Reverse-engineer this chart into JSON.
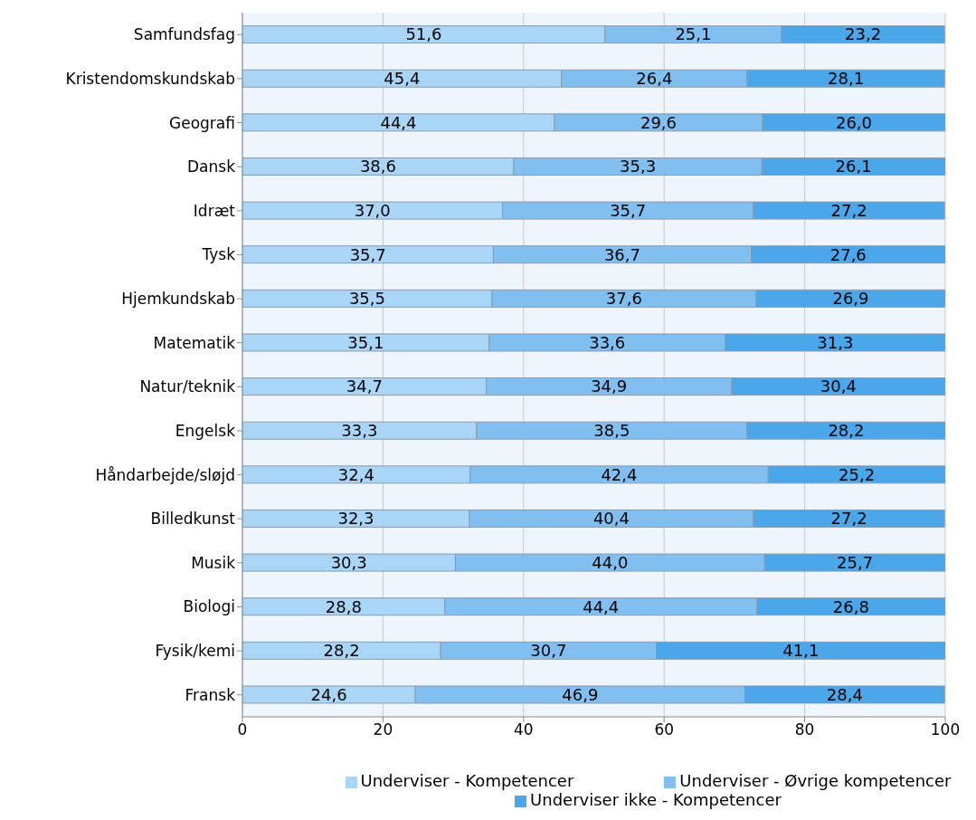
{
  "chart_data": {
    "type": "bar",
    "orientation": "horizontal",
    "stacked": true,
    "categories": [
      "Samfundsfag",
      "Kristendomskundskab",
      "Geografi",
      "Dansk",
      "Idræt",
      "Tysk",
      "Hjemkundskab",
      "Matematik",
      "Natur/teknik",
      "Engelsk",
      "Håndarbejde/sløjd",
      "Billedkunst",
      "Musik",
      "Biologi",
      "Fysik/kemi",
      "Fransk"
    ],
    "series": [
      {
        "name": "Underviser - Kompetencer",
        "color": "#a9d5f6",
        "values": [
          51.6,
          45.4,
          44.4,
          38.6,
          37.0,
          35.7,
          35.5,
          35.1,
          34.7,
          33.3,
          32.4,
          32.3,
          30.3,
          28.8,
          28.2,
          24.6
        ],
        "value_labels": [
          "51,6",
          "45,4",
          "44,4",
          "38,6",
          "37,0",
          "35,7",
          "35,5",
          "35,1",
          "34,7",
          "33,3",
          "32,4",
          "32,3",
          "30,3",
          "28,8",
          "28,2",
          "24,6"
        ]
      },
      {
        "name": "Underviser - Øvrige kompetencer",
        "color": "#80bff0",
        "values": [
          25.1,
          26.4,
          29.6,
          35.3,
          35.7,
          36.7,
          37.6,
          33.6,
          34.9,
          38.5,
          42.4,
          40.4,
          44.0,
          44.4,
          30.7,
          46.9
        ],
        "value_labels": [
          "25,1",
          "26,4",
          "29,6",
          "35,3",
          "35,7",
          "36,7",
          "37,6",
          "33,6",
          "34,9",
          "38,5",
          "42,4",
          "40,4",
          "44,0",
          "44,4",
          "30,7",
          "46,9"
        ]
      },
      {
        "name": "Underviser ikke - Kompetencer",
        "color": "#4ba6ea",
        "values": [
          23.2,
          28.1,
          26.0,
          26.1,
          27.2,
          27.6,
          26.9,
          31.3,
          30.4,
          28.2,
          25.2,
          27.2,
          25.7,
          26.8,
          41.1,
          28.4
        ],
        "value_labels": [
          "23,2",
          "28,1",
          "26,0",
          "26,1",
          "27,2",
          "27,6",
          "26,9",
          "31,3",
          "30,4",
          "28,2",
          "25,2",
          "27,2",
          "25,7",
          "26,8",
          "41,1",
          "28,4"
        ]
      }
    ],
    "xlim": [
      0,
      100
    ],
    "xticks": [
      0,
      20,
      40,
      60,
      80,
      100
    ],
    "grid": "x",
    "legend": "bottom"
  }
}
